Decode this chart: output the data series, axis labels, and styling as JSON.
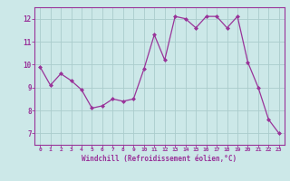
{
  "x": [
    0,
    1,
    2,
    3,
    4,
    5,
    6,
    7,
    8,
    9,
    10,
    11,
    12,
    13,
    14,
    15,
    16,
    17,
    18,
    19,
    20,
    21,
    22,
    23
  ],
  "y": [
    9.9,
    9.1,
    9.6,
    9.3,
    8.9,
    8.1,
    8.2,
    8.5,
    8.4,
    8.5,
    9.8,
    11.3,
    10.2,
    12.1,
    12.0,
    11.6,
    12.1,
    12.1,
    11.6,
    12.1,
    10.1,
    9.0,
    7.6,
    7.0
  ],
  "line_color": "#993399",
  "marker_color": "#993399",
  "bg_color": "#cce8e8",
  "grid_color": "#aacccc",
  "xlabel": "Windchill (Refroidissement éolien,°C)",
  "xlabel_color": "#993399",
  "tick_color": "#993399",
  "ylim": [
    6.5,
    12.5
  ],
  "xlim": [
    -0.5,
    23.5
  ],
  "yticks": [
    7,
    8,
    9,
    10,
    11,
    12
  ],
  "xticks": [
    0,
    1,
    2,
    3,
    4,
    5,
    6,
    7,
    8,
    9,
    10,
    11,
    12,
    13,
    14,
    15,
    16,
    17,
    18,
    19,
    20,
    21,
    22,
    23
  ]
}
